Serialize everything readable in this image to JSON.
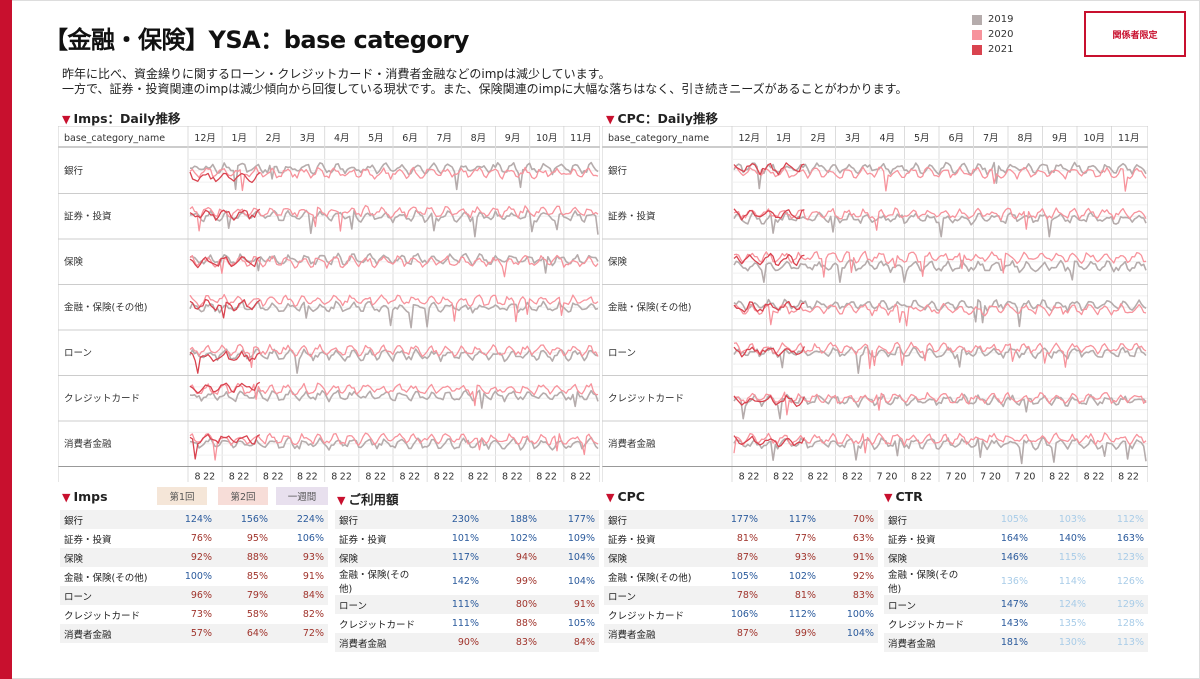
{
  "title": "【金融・保険】YSA：base category",
  "badge": "関係者限定",
  "legend": [
    {
      "label": "2019",
      "color": "#b5acac"
    },
    {
      "label": "2020",
      "color": "#f7939c"
    },
    {
      "label": "2021",
      "color": "#d9434f"
    }
  ],
  "description": [
    "昨年に比べ、資金繰りに関するローン・クレジットカード・消費者金融などのimpは減少しています。",
    "一方で、証券・投資関連のimpは減少傾向から回復している現状です。また、保険関連のimpに大幅な落ちはなく、引き続きニーズがあることがわかります。"
  ],
  "imps_chart_title": "Imps：Daily推移",
  "cpc_chart_title": "CPC：Daily推移",
  "column_header": "base_category_name",
  "imps_months": [
    "12月",
    "1月",
    "2月",
    "3月",
    "4月",
    "5月",
    "6月",
    "7月",
    "8月",
    "9月",
    "10月",
    "11月"
  ],
  "cpc_months": [
    "12月",
    "1月",
    "2月",
    "3月",
    "4月",
    "5月",
    "6月",
    "7月",
    "8月",
    "9月",
    "10月",
    "11月"
  ],
  "imps_day_ticks": [
    "8",
    "22",
    "8",
    "22",
    "8",
    "22",
    "8",
    "22",
    "8",
    "22",
    "8",
    "22",
    "8",
    "22",
    "8",
    "22",
    "8",
    "22",
    "8",
    "22",
    "8",
    "22",
    "8",
    "22"
  ],
  "cpc_day_ticks": [
    "8",
    "22",
    "8",
    "22",
    "8",
    "22",
    "8",
    "22",
    "7",
    "20",
    "8",
    "22",
    "7",
    "20",
    "7",
    "20",
    "7",
    "20",
    "8",
    "22",
    "8",
    "22",
    "8",
    "22"
  ],
  "categories": [
    "銀行",
    "証券・投資",
    "保険",
    "金融・保険(その他)",
    "ローン",
    "クレジットカード",
    "消費者金融"
  ],
  "chart_data": [
    {
      "type": "line",
      "title": "Imps：Daily推移",
      "series": [
        {
          "name": "2019",
          "color": "#b5acac",
          "level": [
            0.55,
            0.5,
            0.55,
            0.5,
            0.45,
            0.55,
            0.5
          ]
        },
        {
          "name": "2020",
          "color": "#f7939c",
          "level": [
            0.45,
            0.6,
            0.5,
            0.65,
            0.55,
            0.7,
            0.6
          ]
        },
        {
          "name": "2021",
          "color": "#d9434f",
          "level": [
            0.35,
            0.55,
            0.5,
            0.55,
            0.4,
            0.75,
            0.6
          ]
        }
      ]
    },
    {
      "type": "line",
      "title": "CPC：Daily推移",
      "series": [
        {
          "name": "2019",
          "color": "#b5acac",
          "level": [
            0.55,
            0.45,
            0.4,
            0.55,
            0.5,
            0.45,
            0.5
          ]
        },
        {
          "name": "2020",
          "color": "#f7939c",
          "level": [
            0.45,
            0.55,
            0.6,
            0.45,
            0.6,
            0.5,
            0.6
          ]
        },
        {
          "name": "2021",
          "color": "#d9434f",
          "level": [
            0.55,
            0.55,
            0.55,
            0.5,
            0.55,
            0.45,
            0.55
          ]
        }
      ]
    }
  ],
  "imps_table": {
    "title": "Imps",
    "headers": [
      "第1回",
      "第2回",
      "一週間"
    ],
    "rows": [
      {
        "label": "銀行",
        "values": [
          "124%",
          "156%",
          "224%"
        ]
      },
      {
        "label": "証券・投資",
        "values": [
          "76%",
          "95%",
          "106%"
        ]
      },
      {
        "label": "保険",
        "values": [
          "92%",
          "88%",
          "93%"
        ]
      },
      {
        "label": "金融・保険(その他)",
        "values": [
          "100%",
          "85%",
          "91%"
        ]
      },
      {
        "label": "ローン",
        "values": [
          "96%",
          "79%",
          "84%"
        ]
      },
      {
        "label": "クレジットカード",
        "values": [
          "73%",
          "58%",
          "82%"
        ]
      },
      {
        "label": "消費者金融",
        "values": [
          "57%",
          "64%",
          "72%"
        ]
      }
    ]
  },
  "usage_table": {
    "title": "ご利用額",
    "rows": [
      {
        "label": "銀行",
        "values": [
          "230%",
          "188%",
          "177%"
        ]
      },
      {
        "label": "証券・投資",
        "values": [
          "101%",
          "102%",
          "109%"
        ]
      },
      {
        "label": "保険",
        "values": [
          "117%",
          "94%",
          "104%"
        ]
      },
      {
        "label": "金融・保険(その他)",
        "values": [
          "142%",
          "99%",
          "104%"
        ]
      },
      {
        "label": "ローン",
        "values": [
          "111%",
          "80%",
          "91%"
        ]
      },
      {
        "label": "クレジットカード",
        "values": [
          "111%",
          "88%",
          "105%"
        ]
      },
      {
        "label": "消費者金融",
        "values": [
          "90%",
          "83%",
          "84%"
        ]
      }
    ]
  },
  "cpc_table": {
    "title": "CPC",
    "rows": [
      {
        "label": "銀行",
        "values": [
          "177%",
          "117%",
          "70%"
        ]
      },
      {
        "label": "証券・投資",
        "values": [
          "81%",
          "77%",
          "63%"
        ]
      },
      {
        "label": "保険",
        "values": [
          "87%",
          "93%",
          "91%"
        ]
      },
      {
        "label": "金融・保険(その他)",
        "values": [
          "105%",
          "102%",
          "92%"
        ]
      },
      {
        "label": "ローン",
        "values": [
          "78%",
          "81%",
          "83%"
        ]
      },
      {
        "label": "クレジットカード",
        "values": [
          "106%",
          "112%",
          "100%"
        ]
      },
      {
        "label": "消費者金融",
        "values": [
          "87%",
          "99%",
          "104%"
        ]
      }
    ]
  },
  "ctr_table": {
    "title": "CTR",
    "rows": [
      {
        "label": "銀行",
        "values": [
          "105%",
          "103%",
          "112%"
        ]
      },
      {
        "label": "証券・投資",
        "values": [
          "164%",
          "140%",
          "163%"
        ]
      },
      {
        "label": "保険",
        "values": [
          "146%",
          "115%",
          "123%"
        ]
      },
      {
        "label": "金融・保険(その他)",
        "values": [
          "136%",
          "114%",
          "126%"
        ]
      },
      {
        "label": "ローン",
        "values": [
          "147%",
          "124%",
          "129%"
        ]
      },
      {
        "label": "クレジットカード",
        "values": [
          "143%",
          "135%",
          "128%"
        ]
      },
      {
        "label": "消費者金融",
        "values": [
          "181%",
          "130%",
          "113%"
        ]
      }
    ]
  },
  "colors": {
    "accent": "#c8102e",
    "good": "#2a5a9c",
    "bad": "#a0342c",
    "faint": "#a8cce8",
    "btn1": "#f5e6d8",
    "btn2": "#f7ddd8",
    "btn3": "#e8e0ee"
  }
}
